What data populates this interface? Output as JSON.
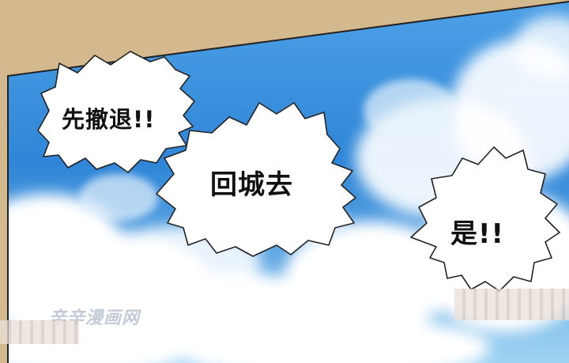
{
  "panel": {
    "speech_1": "先撤退!!",
    "speech_2": "回城去",
    "speech_3": "是!!"
  },
  "watermark": {
    "text": "辛辛漫画网"
  },
  "colors": {
    "frame_border": "#d4b88e",
    "sky_top": "#2f86d8",
    "sky_bottom": "#9fd3f3",
    "cloud": "#ffffff",
    "bubble_fill": "#ffffff",
    "bubble_outline": "#222222"
  }
}
